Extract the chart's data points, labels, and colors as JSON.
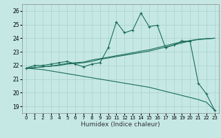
{
  "title": "",
  "xlabel": "Humidex (Indice chaleur)",
  "bg_color": "#c5e8e5",
  "grid_color": "#aad0cc",
  "line_color": "#1a6b5a",
  "xlim": [
    -0.5,
    23.5
  ],
  "ylim": [
    18.5,
    26.5
  ],
  "x_ticks": [
    0,
    1,
    2,
    3,
    4,
    5,
    6,
    7,
    8,
    9,
    10,
    11,
    12,
    13,
    14,
    15,
    16,
    17,
    18,
    19,
    20,
    21,
    22,
    23
  ],
  "y_ticks": [
    19,
    20,
    21,
    22,
    23,
    24,
    25,
    26
  ],
  "line1_x": [
    0,
    1,
    2,
    3,
    4,
    5,
    6,
    7,
    8,
    9,
    10,
    11,
    12,
    13,
    14,
    15,
    16,
    17,
    18,
    19,
    20,
    21,
    22,
    23
  ],
  "line1_y": [
    21.8,
    22.0,
    22.0,
    22.1,
    22.2,
    22.3,
    22.1,
    21.9,
    22.1,
    22.2,
    23.3,
    25.2,
    24.4,
    24.6,
    25.85,
    24.85,
    24.95,
    23.3,
    23.5,
    23.8,
    23.75,
    20.7,
    19.9,
    18.7
  ],
  "line2_x": [
    0,
    23
  ],
  "line2_y": [
    21.8,
    24.0
  ],
  "line3_x": [
    0,
    23
  ],
  "line3_y": [
    21.8,
    18.7
  ],
  "line4_x": [
    0,
    23
  ],
  "line4_y": [
    21.8,
    24.0
  ],
  "smooth_upper_x": [
    0,
    1,
    2,
    3,
    4,
    5,
    6,
    7,
    8,
    9,
    10,
    11,
    12,
    13,
    14,
    15,
    16,
    17,
    18,
    19,
    20,
    21,
    22,
    23
  ],
  "smooth_upper_y": [
    21.8,
    21.85,
    21.9,
    21.95,
    22.0,
    22.1,
    22.15,
    22.2,
    22.3,
    22.45,
    22.55,
    22.65,
    22.75,
    22.85,
    22.95,
    23.05,
    23.2,
    23.35,
    23.5,
    23.65,
    23.8,
    23.9,
    23.95,
    24.0
  ],
  "smooth_lower_x": [
    0,
    1,
    2,
    3,
    4,
    5,
    6,
    7,
    8,
    9,
    10,
    11,
    12,
    13,
    14,
    15,
    16,
    17,
    18,
    19,
    20,
    21,
    22,
    23
  ],
  "smooth_lower_y": [
    21.8,
    21.75,
    21.7,
    21.6,
    21.5,
    21.4,
    21.3,
    21.2,
    21.1,
    21.0,
    20.9,
    20.8,
    20.7,
    20.6,
    20.5,
    20.4,
    20.25,
    20.1,
    19.95,
    19.8,
    19.65,
    19.5,
    19.3,
    18.7
  ],
  "smooth_mid_x": [
    0,
    1,
    2,
    3,
    4,
    5,
    6,
    7,
    8,
    9,
    10,
    11,
    12,
    13,
    14,
    15,
    16,
    17,
    18,
    19,
    20,
    21,
    22,
    23
  ],
  "smooth_mid_y": [
    21.8,
    21.85,
    21.9,
    21.95,
    22.05,
    22.15,
    22.2,
    22.25,
    22.4,
    22.5,
    22.6,
    22.72,
    22.82,
    22.93,
    23.05,
    23.15,
    23.3,
    23.45,
    23.6,
    23.72,
    23.83,
    23.92,
    23.97,
    24.0
  ]
}
